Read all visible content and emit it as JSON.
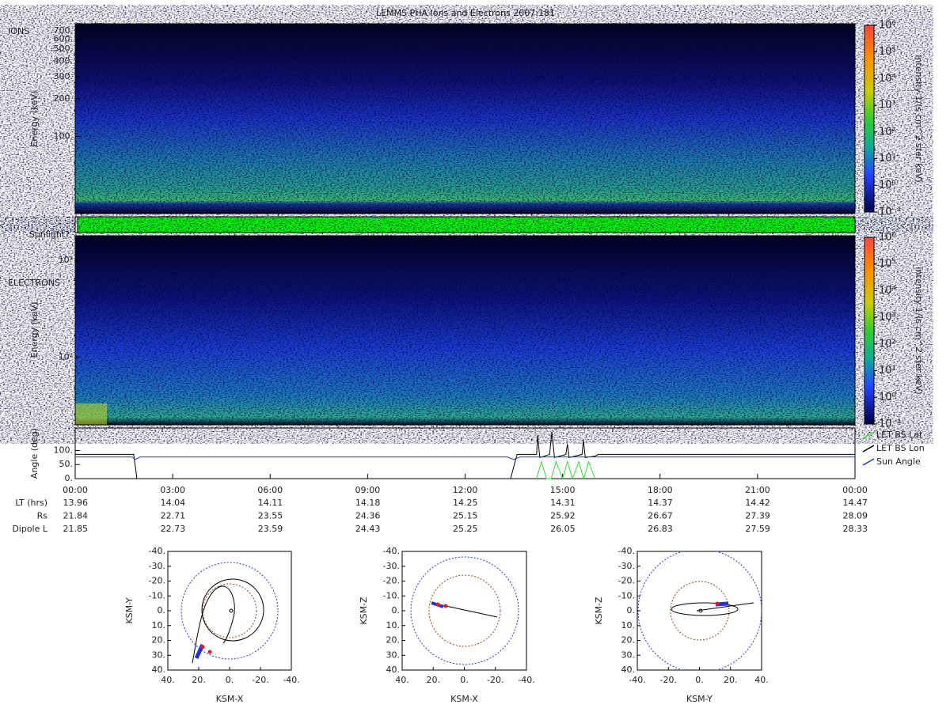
{
  "title": "LEMMS PHA Ions and Electrons  2007:181",
  "ions": {
    "label": "IONS",
    "ylabel": "Energy (keV)",
    "ylim": [
      24,
      800
    ],
    "log": true,
    "yticks": [
      {
        "value": 700,
        "label": "700."
      },
      {
        "value": 600,
        "label": "600."
      },
      {
        "value": 500,
        "label": "500."
      },
      {
        "value": 400,
        "label": "400."
      },
      {
        "value": 300,
        "label": "300."
      },
      {
        "value": 200,
        "label": "200."
      },
      {
        "value": 100,
        "label": "100."
      }
    ]
  },
  "electrons": {
    "label": "ELECTRONS",
    "ylabel": "Energy (keV)",
    "ylim": [
      20,
      1790
    ],
    "log": true,
    "yticks": [
      {
        "value": 1000,
        "label": "10³"
      },
      {
        "value": 100,
        "label": "10²"
      }
    ]
  },
  "colorbar": {
    "label": "intensity 1/(s cm^2 ster keV)",
    "lim": [
      0.1,
      1000000
    ],
    "log": true,
    "ticks": [
      {
        "value": 0.1,
        "label": "10⁻¹"
      },
      {
        "value": 1,
        "label": "10⁰"
      },
      {
        "value": 10,
        "label": "10¹"
      },
      {
        "value": 100,
        "label": "10²"
      },
      {
        "value": 1000,
        "label": "10³"
      },
      {
        "value": 10000,
        "label": "10⁴"
      },
      {
        "value": 100000,
        "label": "10⁵"
      },
      {
        "value": 1000000,
        "label": "10⁶"
      }
    ]
  },
  "sunlight": {
    "label": "Sunlight?"
  },
  "angle": {
    "ylabel": "Angle (deg)",
    "ylim": [
      0,
      180
    ],
    "yticks": [
      {
        "value": 0,
        "label": "0."
      },
      {
        "value": 50,
        "label": "50."
      },
      {
        "value": 100,
        "label": "100."
      }
    ],
    "series": [
      {
        "name": "LET BS Lat",
        "color": "#33dd33",
        "x": [
          14.2,
          14.35,
          14.5,
          14.65,
          14.8,
          15.0,
          15.15,
          15.3,
          15.5,
          15.65,
          15.8,
          16.0
        ],
        "values": [
          0,
          60,
          0,
          0,
          60,
          0,
          60,
          0,
          60,
          0,
          60,
          0
        ]
      },
      {
        "name": "LET BS Lon",
        "color": "#000000",
        "x": [
          0,
          1.8,
          1.9,
          13.4,
          13.6,
          14.2,
          14.23,
          14.3,
          14.6,
          14.67,
          14.75,
          15.1,
          15.15,
          15.2,
          15.6,
          15.64,
          15.7,
          16.0,
          16.1,
          24
        ],
        "values": [
          86,
          86,
          0,
          0,
          86,
          86,
          154,
          75,
          86,
          166,
          75,
          86,
          123,
          75,
          86,
          137,
          75,
          80,
          86,
          86
        ]
      },
      {
        "name": "Sun Angle",
        "color": "#2233dd",
        "x": [
          0,
          1.75,
          1.85,
          2.0,
          13.3,
          13.5,
          13.7,
          24
        ],
        "values": [
          77,
          77,
          68,
          77,
          77,
          68,
          77,
          77
        ]
      }
    ]
  },
  "time_axis": {
    "xlim": [
      0,
      24
    ],
    "xticks": [
      {
        "value": 0,
        "label": "00:00"
      },
      {
        "value": 3,
        "label": "03:00"
      },
      {
        "value": 6,
        "label": "06:00"
      },
      {
        "value": 9,
        "label": "09:00"
      },
      {
        "value": 12,
        "label": "12:00"
      },
      {
        "value": 15,
        "label": "15:00"
      },
      {
        "value": 18,
        "label": "18:00"
      },
      {
        "value": 21,
        "label": "21:00"
      },
      {
        "value": 24,
        "label": "00:00"
      }
    ]
  },
  "ephemeris": {
    "rows": [
      {
        "label": "LT (hrs)",
        "values": [
          13.96,
          14.04,
          14.11,
          14.18,
          14.25,
          14.31,
          14.37,
          14.42,
          14.47
        ]
      },
      {
        "label": "Rs",
        "values": [
          21.84,
          22.71,
          23.55,
          24.36,
          25.15,
          25.92,
          26.67,
          27.39,
          28.09
        ]
      },
      {
        "label": "Dipole L",
        "values": [
          21.85,
          22.73,
          23.59,
          24.43,
          25.25,
          26.05,
          26.83,
          27.59,
          28.33
        ]
      }
    ]
  },
  "orbits": [
    {
      "xlabel": "KSM-X",
      "ylabel": "KSM-Y",
      "xlim": [
        40,
        -40
      ],
      "ylim": [
        -40,
        40
      ],
      "xticks": [
        {
          "value": 40,
          "label": "40."
        },
        {
          "value": 20,
          "label": "20."
        },
        {
          "value": 0,
          "label": "0."
        },
        {
          "value": -20,
          "label": "-20."
        },
        {
          "value": -40,
          "label": "-40."
        }
      ],
      "yticks": [
        {
          "value": -40,
          "label": "-40."
        },
        {
          "value": -30,
          "label": "-30."
        },
        {
          "value": -20,
          "label": "-20."
        },
        {
          "value": -10,
          "label": "-10."
        },
        {
          "value": 0,
          "label": "0."
        },
        {
          "value": 10,
          "label": "10."
        },
        {
          "value": 20,
          "label": "20."
        },
        {
          "value": 30,
          "label": "30."
        },
        {
          "value": 40,
          "label": "40."
        }
      ]
    },
    {
      "xlabel": "KSM-X",
      "ylabel": "KSM-Z",
      "xlim": [
        40,
        -40
      ],
      "ylim": [
        -40,
        40
      ],
      "xticks": [
        {
          "value": 40,
          "label": "40."
        },
        {
          "value": 20,
          "label": "20."
        },
        {
          "value": 0,
          "label": "0."
        },
        {
          "value": -20,
          "label": "-20."
        },
        {
          "value": -40,
          "label": "-40."
        }
      ],
      "yticks": [
        {
          "value": -40,
          "label": "-40."
        },
        {
          "value": -30,
          "label": "-30."
        },
        {
          "value": -20,
          "label": "-20."
        },
        {
          "value": -10,
          "label": "-10."
        },
        {
          "value": 0,
          "label": "0."
        },
        {
          "value": 10,
          "label": "10."
        },
        {
          "value": 20,
          "label": "20."
        },
        {
          "value": 30,
          "label": "30."
        },
        {
          "value": 40,
          "label": "40."
        }
      ]
    },
    {
      "xlabel": "KSM-Y",
      "ylabel": "KSM-Z",
      "xlim": [
        -40,
        40
      ],
      "ylim": [
        -40,
        40
      ],
      "xticks": [
        {
          "value": -40,
          "label": "-40."
        },
        {
          "value": -20,
          "label": "-20."
        },
        {
          "value": 0,
          "label": "0."
        },
        {
          "value": 20,
          "label": "20."
        },
        {
          "value": 40,
          "label": "40."
        }
      ],
      "yticks": [
        {
          "value": -40,
          "label": "-40."
        },
        {
          "value": -30,
          "label": "-30."
        },
        {
          "value": -20,
          "label": "-20."
        },
        {
          "value": -10,
          "label": "-10."
        },
        {
          "value": 0,
          "label": "0."
        },
        {
          "value": 10,
          "label": "10."
        },
        {
          "value": 20,
          "label": "20."
        },
        {
          "value": 30,
          "label": "30."
        },
        {
          "value": 40,
          "label": "40."
        }
      ]
    }
  ]
}
